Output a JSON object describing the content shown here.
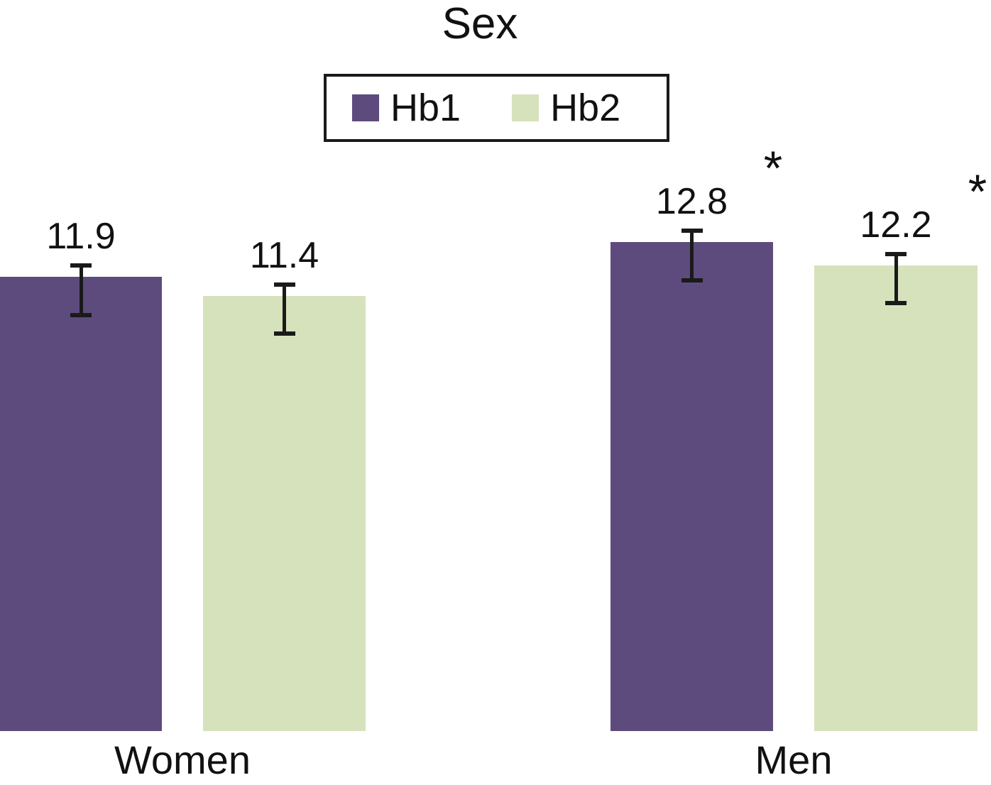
{
  "chart_data": {
    "type": "bar",
    "title": "Sex",
    "categories": [
      "Women",
      "Men"
    ],
    "series": [
      {
        "name": "Hb1",
        "color": "#5e4b7d",
        "values": [
          11.9,
          12.8
        ]
      },
      {
        "name": "Hb2",
        "color": "#d6e2bc",
        "values": [
          11.4,
          12.2
        ]
      }
    ],
    "bars": [
      {
        "category": "Women",
        "series": "Hb1",
        "value": 11.9,
        "label": "11.9",
        "error_upper": 12.2,
        "error_lower": 10.9,
        "significant": false
      },
      {
        "category": "Women",
        "series": "Hb2",
        "value": 11.4,
        "label": "11.4",
        "error_upper": 11.7,
        "error_lower": 10.4,
        "significant": false
      },
      {
        "category": "Men",
        "series": "Hb1",
        "value": 12.8,
        "label": "12.8",
        "error_upper": 13.1,
        "error_lower": 11.8,
        "significant": true
      },
      {
        "category": "Men",
        "series": "Hb2",
        "value": 12.2,
        "label": "12.2",
        "error_upper": 12.5,
        "error_lower": 11.2,
        "significant": true
      }
    ],
    "significance_marker": "*",
    "ylim": [
      0,
      19.1
    ],
    "grid": false,
    "y_axis_visible": false,
    "x_axis_visible": false,
    "legend_position": "top-center",
    "value_labels_shown": true,
    "error_bars_shown": true,
    "colors": {
      "background": "#ffffff",
      "text": "#111111",
      "legend_border": "#1a1a1a",
      "error_bar": "#1a1a1a"
    }
  }
}
